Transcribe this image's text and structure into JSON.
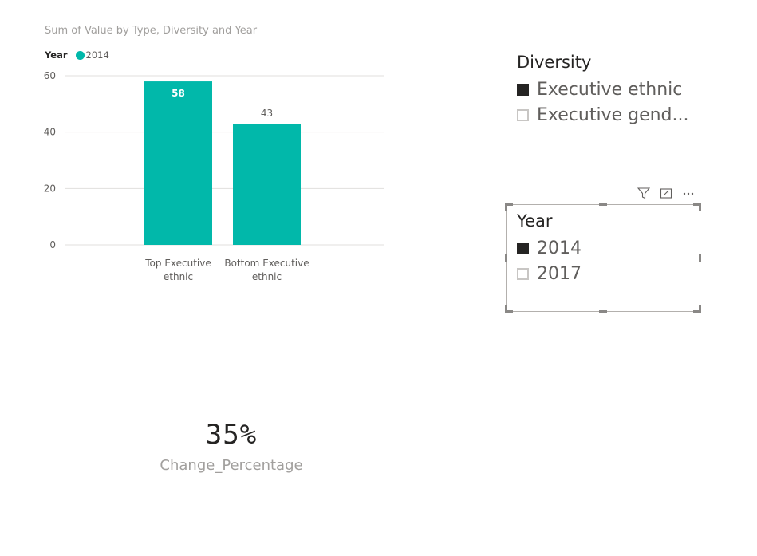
{
  "chart_data": {
    "type": "bar",
    "title": "Sum of Value by Type, Diversity and Year",
    "legend": {
      "title": "Year",
      "items": [
        {
          "name": "2014",
          "color": "#01b8aa"
        }
      ]
    },
    "categories": [
      "Top Executive ethnic",
      "Bottom Executive ethnic"
    ],
    "category_lines": [
      [
        "Top Executive",
        "ethnic"
      ],
      [
        "Bottom Executive",
        "ethnic"
      ]
    ],
    "series": [
      {
        "name": "2014",
        "values": [
          58,
          43
        ],
        "color": "#01b8aa"
      }
    ],
    "data_labels": [
      "58",
      "43"
    ],
    "y_ticks": [
      0,
      20,
      40,
      60
    ],
    "ylim": [
      0,
      60
    ],
    "grid": true,
    "legend_position": "top-left"
  },
  "diversity_slicer": {
    "title": "Diversity",
    "items": [
      {
        "label": "Executive ethnic",
        "checked": true
      },
      {
        "label": "Executive gend...",
        "checked": false
      }
    ]
  },
  "year_slicer": {
    "title": "Year",
    "items": [
      {
        "label": "2014",
        "checked": true
      },
      {
        "label": "2017",
        "checked": false
      }
    ],
    "header_icons": [
      "filter-icon",
      "focus-mode-icon",
      "more-options-icon"
    ]
  },
  "card": {
    "value": "35%",
    "label": "Change_Percentage"
  },
  "colors": {
    "bar": "#01b8aa",
    "gridline": "#e1dfdd",
    "axis_text": "#605e5c",
    "title_text": "#a19f9d"
  }
}
